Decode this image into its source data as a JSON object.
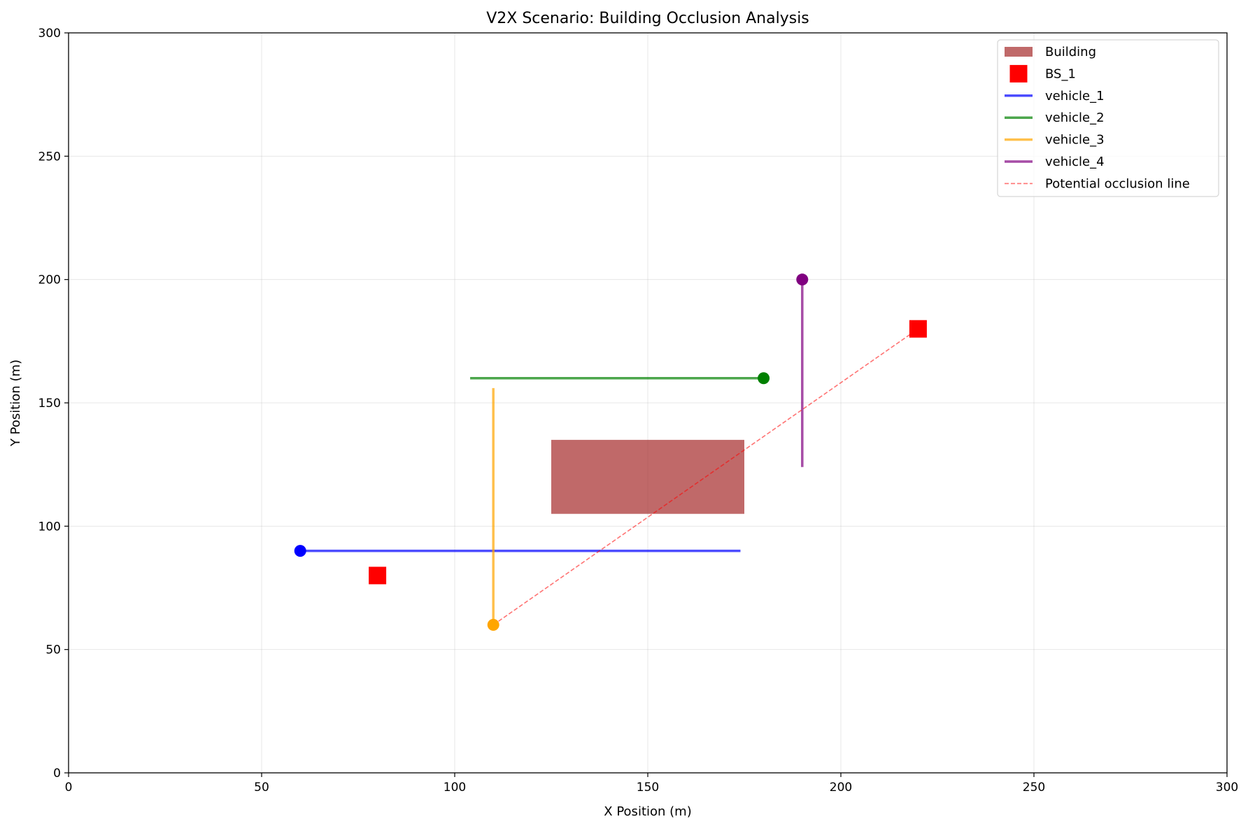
{
  "chart_data": {
    "type": "line",
    "title": "V2X Scenario: Building Occlusion Analysis",
    "xlabel": "X Position (m)",
    "ylabel": "Y Position (m)",
    "xlim": [
      0,
      300
    ],
    "ylim": [
      0,
      300
    ],
    "xticks": [
      0,
      50,
      100,
      150,
      200,
      250,
      300
    ],
    "yticks": [
      0,
      50,
      100,
      150,
      200,
      250,
      300
    ],
    "grid": true,
    "legend_position": "top-right",
    "building": {
      "name": "Building",
      "x": [
        125,
        175
      ],
      "y": [
        105,
        135
      ],
      "color": "#a52a2a"
    },
    "base_stations": {
      "name": "BS_1",
      "color": "#ff0000",
      "points": [
        {
          "x": 80,
          "y": 80
        },
        {
          "x": 220,
          "y": 180
        }
      ]
    },
    "series": [
      {
        "name": "vehicle_1",
        "color": "#0000ff",
        "x": [
          60,
          174
        ],
        "y": [
          90,
          90
        ],
        "marker": {
          "x": 60,
          "y": 90
        }
      },
      {
        "name": "vehicle_2",
        "color": "#008000",
        "x": [
          104,
          180
        ],
        "y": [
          160,
          160
        ],
        "marker": {
          "x": 180,
          "y": 160
        }
      },
      {
        "name": "vehicle_3",
        "color": "#ffa500",
        "x": [
          110,
          110
        ],
        "y": [
          60,
          156
        ],
        "marker": {
          "x": 110,
          "y": 60
        }
      },
      {
        "name": "vehicle_4",
        "color": "#800080",
        "x": [
          190,
          190
        ],
        "y": [
          124,
          200
        ],
        "marker": {
          "x": 190,
          "y": 200
        }
      }
    ],
    "occlusion_line": {
      "name": "Potential occlusion line",
      "color": "#ff0000",
      "x": [
        110,
        220
      ],
      "y": [
        60,
        180
      ]
    }
  }
}
